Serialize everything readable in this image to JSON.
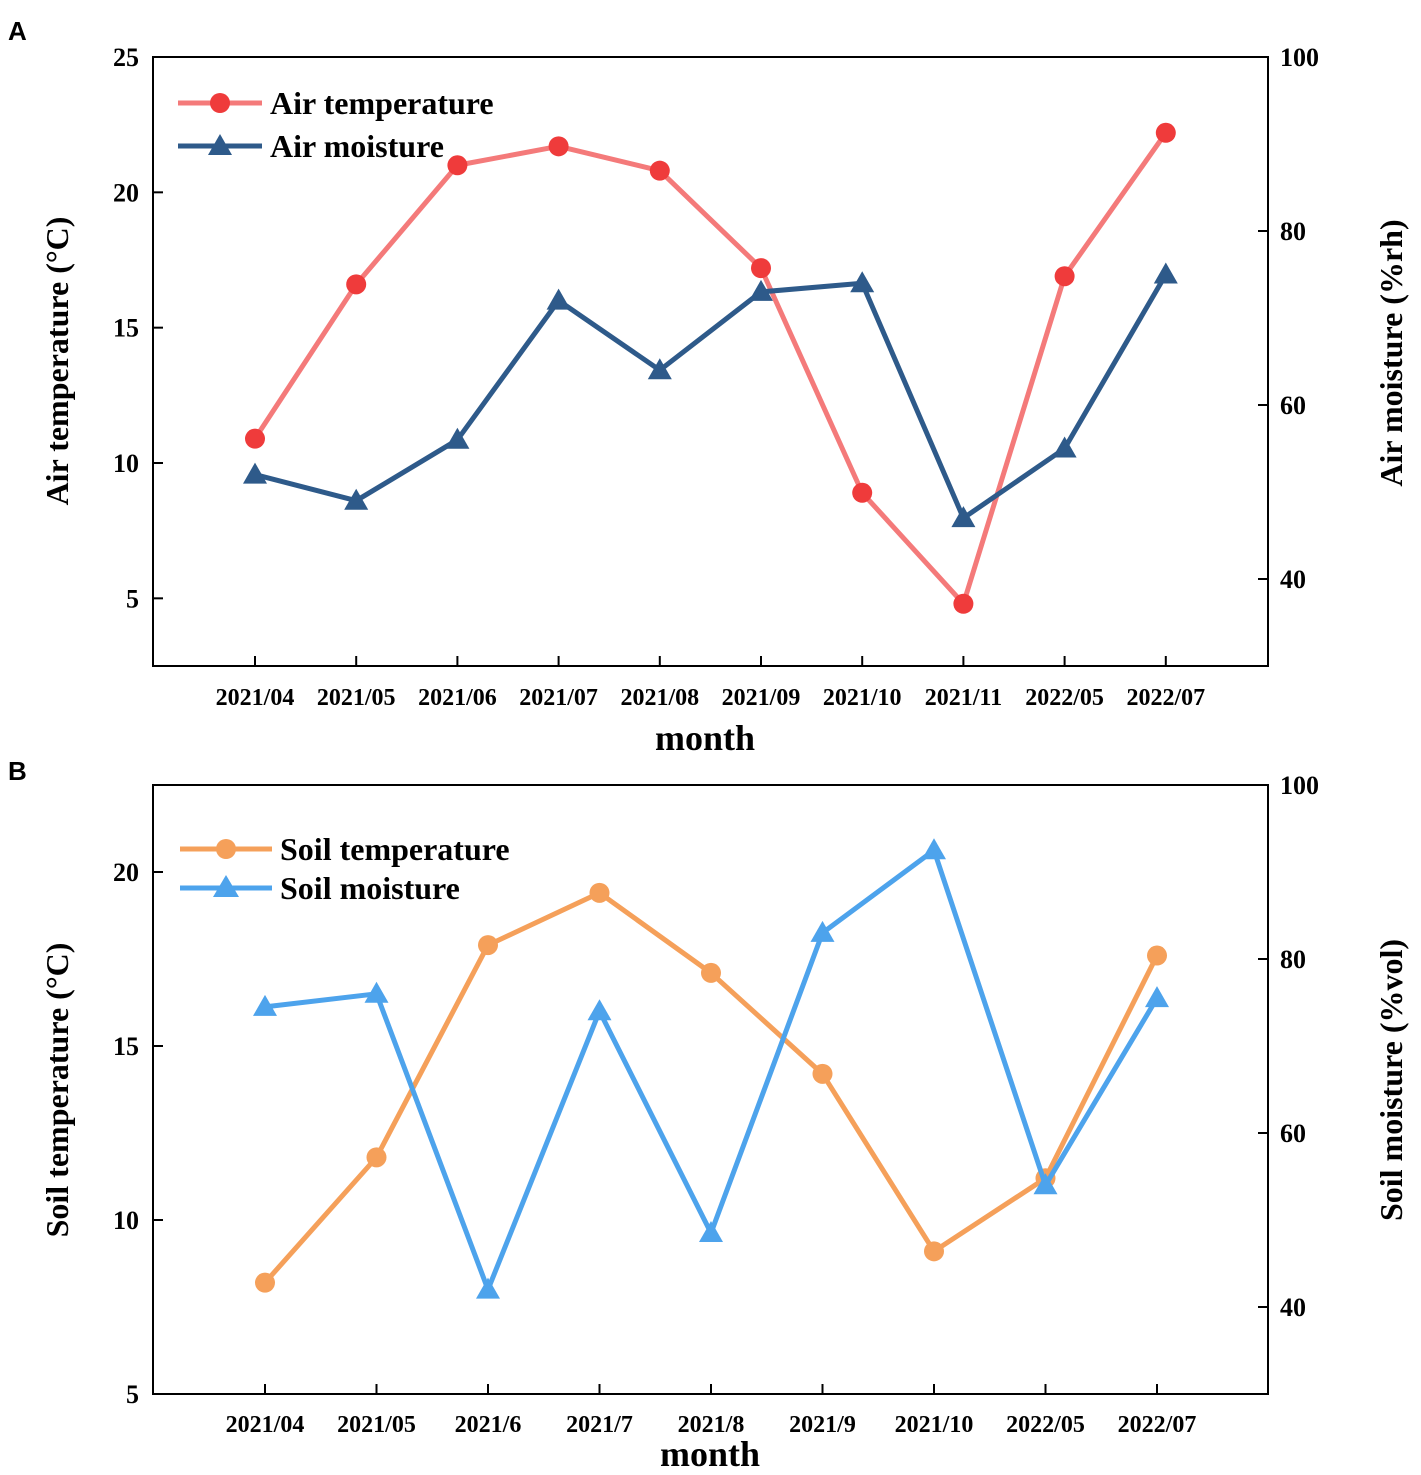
{
  "chart_data": [
    {
      "panel": "A",
      "type": "line",
      "categories": [
        "2021/04",
        "2021/05",
        "2021/06",
        "2021/07",
        "2021/08",
        "2021/09",
        "2021/10",
        "2021/11",
        "2022/05",
        "2022/07"
      ],
      "xlabel": "month",
      "ylabel_left": "Air temperature (°C)",
      "ylabel_right": "Air moisture (%rh)",
      "ylim_left": [
        2.5,
        25
      ],
      "ylim_right": [
        30,
        100
      ],
      "yticks_left": [
        "5",
        "10",
        "15",
        "20",
        "25"
      ],
      "yticks_right": [
        "40",
        "60",
        "80",
        "100"
      ],
      "legend_position": "top-left",
      "series": [
        {
          "name": "Air temperature",
          "axis": "left",
          "marker": "circle",
          "color": "#f47a7a",
          "marker_color": "#ef3b3b",
          "values": [
            10.9,
            16.6,
            21.0,
            21.7,
            20.8,
            17.2,
            8.9,
            4.8,
            16.9,
            22.2
          ],
          "x": [
            0,
            1,
            2,
            3,
            4,
            5,
            6,
            7,
            8,
            9
          ]
        },
        {
          "name": "Air moisture",
          "axis": "right",
          "marker": "triangle",
          "color": "#2e5a8a",
          "marker_color": "#2e5a8a",
          "values": [
            52,
            49,
            56,
            72,
            64,
            73,
            74,
            47,
            55,
            75
          ],
          "x": [
            0,
            1,
            2,
            3,
            4,
            5,
            6,
            7,
            8,
            9
          ]
        }
      ]
    },
    {
      "panel": "B",
      "type": "line",
      "categories": [
        "2021/04",
        "2021/05",
        "2021/6",
        "2021/7",
        "2021/8",
        "2021/9",
        "2021/10",
        "2022/05",
        "2022/07"
      ],
      "xlabel": "month",
      "ylabel_left": "Soil temperature (°C)",
      "ylabel_right": "Soil moisture (%vol)",
      "ylim_left": [
        5,
        22.5
      ],
      "ylim_right": [
        30,
        100
      ],
      "yticks_left": [
        "5",
        "10",
        "15",
        "20"
      ],
      "yticks_right": [
        "40",
        "60",
        "80",
        "100"
      ],
      "legend_position": "top-left",
      "series": [
        {
          "name": "Soil temperature",
          "axis": "left",
          "marker": "circle",
          "color": "#f5a05a",
          "marker_color": "#f5a05a",
          "values": [
            8.2,
            11.8,
            17.9,
            19.4,
            17.1,
            14.2,
            9.1,
            11.2,
            17.6
          ],
          "x": [
            0,
            1,
            2,
            3,
            4,
            5,
            6,
            7,
            8
          ]
        },
        {
          "name": "Soil moisture",
          "axis": "right",
          "marker": "triangle",
          "color": "#4da3ec",
          "marker_color": "#4da3ec",
          "values": [
            74.5,
            76,
            42,
            74,
            48.5,
            83,
            92.5,
            54,
            75.5
          ],
          "x": [
            0,
            1,
            2,
            3,
            4,
            5,
            6,
            7,
            8
          ]
        }
      ]
    }
  ]
}
